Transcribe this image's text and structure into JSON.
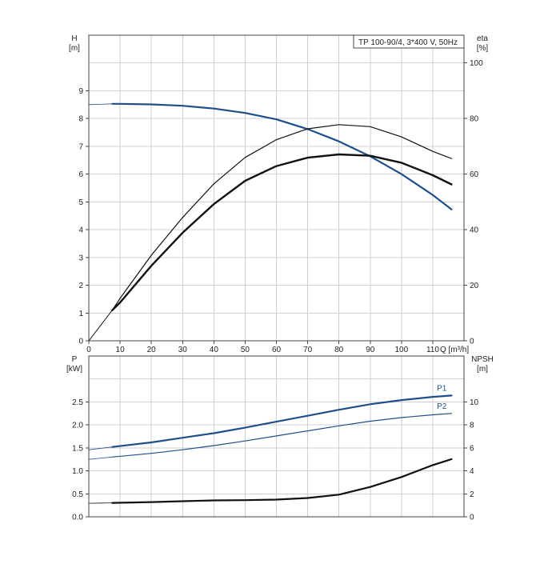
{
  "title": "TP 100-90/4, 3*400 V, 50Hz",
  "colors": {
    "blue": "#1f4f8a",
    "black": "#111111"
  },
  "chart_data": [
    {
      "type": "line",
      "panel": "top",
      "x_axis": {
        "label": "Q [m³/h]",
        "min": 0,
        "max": 120,
        "ticks": [
          0,
          10,
          20,
          30,
          40,
          50,
          60,
          70,
          80,
          90,
          100,
          110
        ]
      },
      "y_left": {
        "label_line1": "H",
        "label_line2": "[m]",
        "min": 0,
        "max": 11,
        "ticks": [
          0,
          1,
          2,
          3,
          4,
          5,
          6,
          7,
          8,
          9
        ]
      },
      "y_right": {
        "label_line1": "eta",
        "label_line2": "[%]",
        "min": 0,
        "max": 110,
        "ticks": [
          0,
          20,
          40,
          60,
          80,
          100
        ]
      },
      "grid": true,
      "series": [
        {
          "axis": "left",
          "color": "#1f4f8a",
          "width": 2.2,
          "extension": [
            [
              0,
              8.5
            ],
            [
              7.5,
              8.53
            ]
          ],
          "points": [
            [
              7.5,
              8.53
            ],
            [
              10,
              8.53
            ],
            [
              20,
              8.51
            ],
            [
              30,
              8.46
            ],
            [
              40,
              8.36
            ],
            [
              50,
              8.2
            ],
            [
              60,
              7.97
            ],
            [
              70,
              7.62
            ],
            [
              80,
              7.18
            ],
            [
              90,
              6.64
            ],
            [
              100,
              6.0
            ],
            [
              110,
              5.25
            ],
            [
              116,
              4.73
            ]
          ]
        },
        {
          "axis": "right",
          "color": "#111111",
          "width": 1.2,
          "extension": [
            [
              0,
              0
            ],
            [
              7.5,
              11.0
            ]
          ],
          "points": [
            [
              7.5,
              11.0
            ],
            [
              10,
              15.3
            ],
            [
              20,
              30.8
            ],
            [
              30,
              44.4
            ],
            [
              40,
              56.5
            ],
            [
              50,
              66.0
            ],
            [
              60,
              72.4
            ],
            [
              70,
              76.3
            ],
            [
              80,
              77.8
            ],
            [
              90,
              77.1
            ],
            [
              100,
              73.4
            ],
            [
              110,
              68.2
            ],
            [
              116,
              65.6
            ]
          ]
        },
        {
          "axis": "right",
          "color": "#111111",
          "width": 2.4,
          "extension": [
            [
              0,
              0
            ],
            [
              7.5,
              11.0
            ]
          ],
          "points": [
            [
              7.5,
              11.0
            ],
            [
              10,
              13.8
            ],
            [
              20,
              27.0
            ],
            [
              30,
              38.9
            ],
            [
              40,
              49.2
            ],
            [
              50,
              57.6
            ],
            [
              60,
              62.9
            ],
            [
              70,
              65.9
            ],
            [
              80,
              67.1
            ],
            [
              90,
              66.6
            ],
            [
              100,
              64.1
            ],
            [
              110,
              59.6
            ],
            [
              116,
              56.3
            ]
          ]
        }
      ]
    },
    {
      "type": "line",
      "panel": "bottom",
      "x_axis": {
        "min": 0,
        "max": 120
      },
      "y_left": {
        "label_line1": "P",
        "label_line2": "[kW]",
        "min": 0,
        "max": 3.5,
        "ticks": [
          0.0,
          0.5,
          1.0,
          1.5,
          2.0,
          2.5
        ],
        "tick_labels": [
          "0.0",
          "0.5",
          "1.0",
          "1.5",
          "2.0",
          "2.5"
        ]
      },
      "y_right": {
        "label_line1": "NPSH",
        "label_line2": "[m]",
        "min": 0,
        "max": 14,
        "ticks": [
          0,
          2,
          4,
          6,
          8,
          10
        ]
      },
      "grid": true,
      "series": [
        {
          "name": "P1",
          "axis": "left",
          "color": "#1f4f8a",
          "width": 2.2,
          "extension": [
            [
              0,
              1.46
            ],
            [
              7.5,
              1.52
            ]
          ],
          "points": [
            [
              7.5,
              1.52
            ],
            [
              20,
              1.62
            ],
            [
              30,
              1.72
            ],
            [
              40,
              1.82
            ],
            [
              50,
              1.94
            ],
            [
              60,
              2.07
            ],
            [
              70,
              2.2
            ],
            [
              80,
              2.33
            ],
            [
              90,
              2.45
            ],
            [
              100,
              2.54
            ],
            [
              110,
              2.61
            ],
            [
              116,
              2.64
            ]
          ]
        },
        {
          "name": "P2",
          "axis": "left",
          "color": "#1f4f8a",
          "width": 1.2,
          "extension": [
            [
              0,
              1.25
            ],
            [
              7.5,
              1.3
            ]
          ],
          "points": [
            [
              7.5,
              1.3
            ],
            [
              20,
              1.38
            ],
            [
              30,
              1.46
            ],
            [
              40,
              1.55
            ],
            [
              50,
              1.65
            ],
            [
              60,
              1.76
            ],
            [
              70,
              1.87
            ],
            [
              80,
              1.98
            ],
            [
              90,
              2.08
            ],
            [
              100,
              2.16
            ],
            [
              110,
              2.22
            ],
            [
              116,
              2.25
            ]
          ]
        },
        {
          "axis": "right",
          "color": "#111111",
          "width": 2.2,
          "extension": [
            [
              0,
              1.18
            ],
            [
              7.5,
              1.21
            ]
          ],
          "points": [
            [
              7.5,
              1.21
            ],
            [
              20,
              1.28
            ],
            [
              30,
              1.36
            ],
            [
              40,
              1.43
            ],
            [
              50,
              1.45
            ],
            [
              60,
              1.5
            ],
            [
              70,
              1.64
            ],
            [
              80,
              1.93
            ],
            [
              90,
              2.6
            ],
            [
              100,
              3.46
            ],
            [
              110,
              4.5
            ],
            [
              116,
              5.02
            ]
          ]
        }
      ]
    }
  ]
}
